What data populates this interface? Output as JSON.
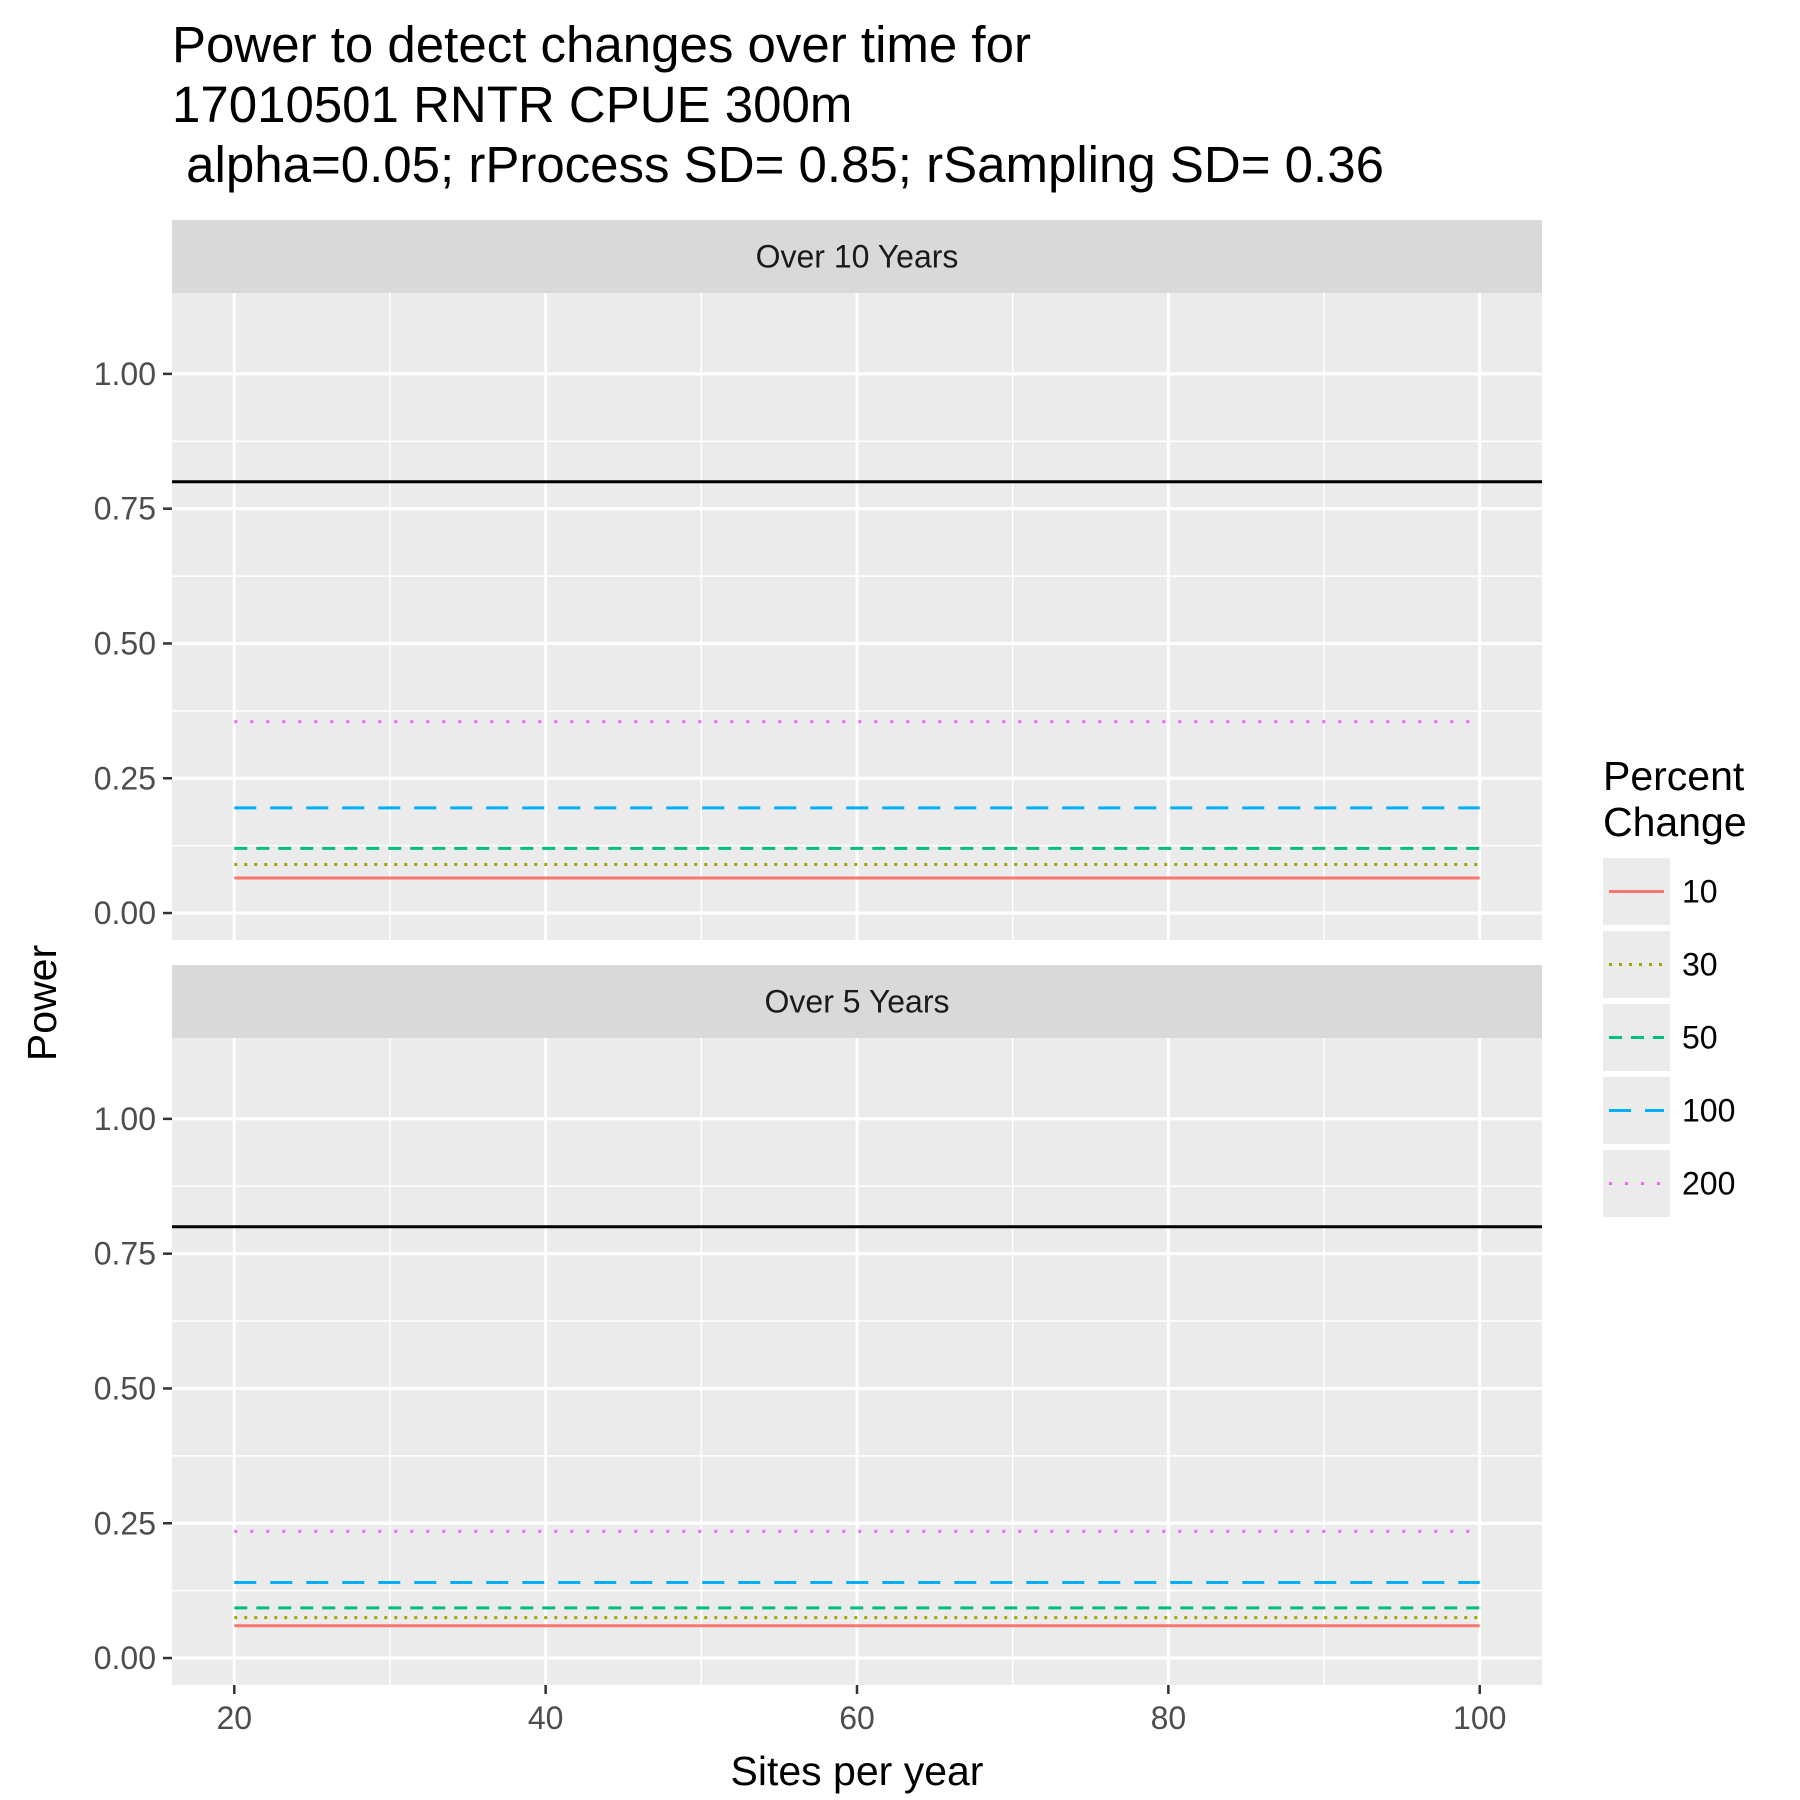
{
  "chart_data": {
    "type": "line",
    "title_lines": [
      "Power to detect changes over time for",
      "17010501 RNTR  CPUE 300m",
      " alpha=0.05; rProcess SD= 0.85; rSampling SD= 0.36"
    ],
    "xlabel": "Sites per year",
    "ylabel": "Power",
    "xlim": [
      16,
      104
    ],
    "ylim": [
      -0.05,
      1.15
    ],
    "x_ticks": [
      20,
      40,
      60,
      80,
      100
    ],
    "x_tick_labels": [
      "20",
      "40",
      "60",
      "80",
      "100"
    ],
    "y_ticks": [
      0,
      0.25,
      0.5,
      0.75,
      1.0
    ],
    "y_tick_labels": [
      "0.00",
      "0.25",
      "0.50",
      "0.75",
      "1.00"
    ],
    "reference_line": 0.8,
    "grid": true,
    "legend": {
      "title_lines": [
        "Percent",
        "Change"
      ],
      "placement": "right",
      "entries": [
        {
          "label": "10",
          "color": "#F8766D",
          "linetype": "solid"
        },
        {
          "label": "30",
          "color": "#A3A500",
          "linetype": "dotted"
        },
        {
          "label": "50",
          "color": "#00BF7D",
          "linetype": "dashed"
        },
        {
          "label": "100",
          "color": "#00B0F6",
          "linetype": "longdash"
        },
        {
          "label": "200",
          "color": "#E76BF3",
          "linetype": "dotted-sparse"
        }
      ]
    },
    "panels": [
      {
        "strip": "Over 10 Years",
        "series": [
          {
            "name": "10",
            "x": [
              20,
              100
            ],
            "y": [
              0.065,
              0.065
            ]
          },
          {
            "name": "30",
            "x": [
              20,
              100
            ],
            "y": [
              0.09,
              0.09
            ]
          },
          {
            "name": "50",
            "x": [
              20,
              100
            ],
            "y": [
              0.12,
              0.12
            ]
          },
          {
            "name": "100",
            "x": [
              20,
              100
            ],
            "y": [
              0.195,
              0.195
            ]
          },
          {
            "name": "200",
            "x": [
              20,
              100
            ],
            "y": [
              0.355,
              0.355
            ]
          }
        ]
      },
      {
        "strip": "Over 5 Years",
        "series": [
          {
            "name": "10",
            "x": [
              20,
              100
            ],
            "y": [
              0.06,
              0.06
            ]
          },
          {
            "name": "30",
            "x": [
              20,
              100
            ],
            "y": [
              0.075,
              0.075
            ]
          },
          {
            "name": "50",
            "x": [
              20,
              100
            ],
            "y": [
              0.093,
              0.093
            ]
          },
          {
            "name": "100",
            "x": [
              20,
              100
            ],
            "y": [
              0.14,
              0.14
            ]
          },
          {
            "name": "200",
            "x": [
              20,
              100
            ],
            "y": [
              0.235,
              0.235
            ]
          }
        ]
      }
    ]
  }
}
